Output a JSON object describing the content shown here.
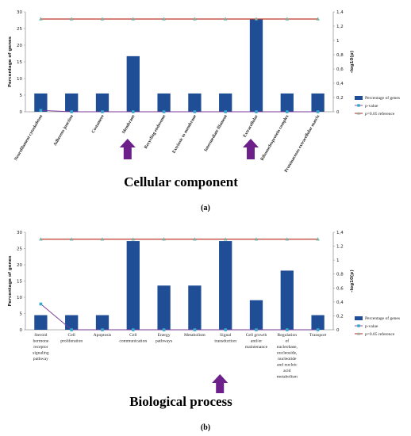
{
  "panel_a_label": "(a)",
  "panel_b_label": "(b)",
  "colors": {
    "bar": "#1f4e96",
    "pvalue": "#33aacc",
    "reference_line": "#c0392b",
    "arrow": "#6d1f8a",
    "axis": "#999999"
  },
  "chart_data": [
    {
      "type": "bar",
      "title": "Cellular component",
      "ylabel": "Percentage of genes",
      "y2label": "-log10(p)",
      "ylim": [
        0,
        30
      ],
      "yticks": [
        0,
        5,
        10,
        15,
        20,
        25,
        30
      ],
      "y2lim": [
        0,
        1.4
      ],
      "y2ticks": [
        "0",
        "0,2",
        "0,4",
        "0,6",
        "0,8",
        "1",
        "1,2",
        "1,4"
      ],
      "legend_position": "right",
      "categories": [
        "Neurofilament cytoskeleton",
        "Adherens junction",
        "Costamere",
        "Membrane",
        "Recycling endosome",
        "Extrinsic to membrane",
        "Intermediate filament",
        "Extracellular",
        "Ribonucleoprotein complex",
        "Proteinaceous extracellular matrix"
      ],
      "highlighted": [
        "Membrane",
        "Extracellular"
      ],
      "series": [
        {
          "name": "Percentage of genes",
          "kind": "bar",
          "axis": "left",
          "values": [
            5.5,
            5.5,
            5.5,
            16.7,
            5.5,
            5.5,
            5.5,
            27.8,
            5.5,
            5.5
          ]
        },
        {
          "name": "p-value",
          "kind": "line",
          "axis": "right",
          "values": [
            0.02,
            0.0,
            0.0,
            0.0,
            0.0,
            0.0,
            0.0,
            0.0,
            0.0,
            0.0
          ]
        },
        {
          "name": "p=0.05 reference",
          "kind": "line",
          "axis": "right",
          "values": [
            1.3,
            1.3,
            1.3,
            1.3,
            1.3,
            1.3,
            1.3,
            1.3,
            1.3,
            1.3
          ]
        }
      ]
    },
    {
      "type": "bar",
      "title": "Biological process",
      "ylabel": "Percentage of genes",
      "y2label": "-log10(p)",
      "ylim": [
        0,
        30
      ],
      "yticks": [
        0,
        5,
        10,
        15,
        20,
        25,
        30
      ],
      "y2lim": [
        0,
        1.4
      ],
      "y2ticks": [
        "0",
        "0,2",
        "0,4",
        "0,6",
        "0,8",
        "1",
        "1,2",
        "1,4"
      ],
      "legend_position": "right",
      "categories": [
        "Steroid hormone receptor signaling pathway",
        "Cell proliferation",
        "Apoptosis",
        "Cell communication",
        "Energy pathways",
        "Metabolism",
        "Signal transduction",
        "Cell growth and/or maintenance",
        "Regulation of nucleobase, nucleoside, nucleotide and nucleic acid metabolism",
        "Transport"
      ],
      "highlighted": [
        "Signal transduction"
      ],
      "series": [
        {
          "name": "Percentage of genes",
          "kind": "bar",
          "axis": "left",
          "values": [
            4.5,
            4.5,
            4.5,
            27.3,
            13.6,
            13.6,
            27.3,
            9.1,
            18.2,
            4.5
          ]
        },
        {
          "name": "p-value",
          "kind": "line",
          "axis": "right",
          "values": [
            0.37,
            0.0,
            0.0,
            0.0,
            0.0,
            0.0,
            0.0,
            0.0,
            0.0,
            0.0
          ]
        },
        {
          "name": "p=0.05 reference",
          "kind": "line",
          "axis": "right",
          "values": [
            1.3,
            1.3,
            1.3,
            1.3,
            1.3,
            1.3,
            1.3,
            1.3,
            1.3,
            1.3
          ]
        }
      ]
    }
  ]
}
